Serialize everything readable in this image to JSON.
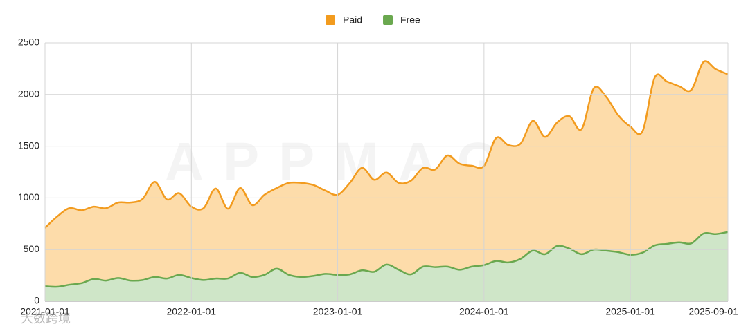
{
  "chart_data": {
    "type": "area",
    "watermark": "APPMAGIC",
    "source_watermark": "大数跨境",
    "x": [
      "2021-01-01",
      "2021-02-01",
      "2021-03-01",
      "2021-04-01",
      "2021-05-01",
      "2021-06-01",
      "2021-07-01",
      "2021-08-01",
      "2021-09-01",
      "2021-10-01",
      "2021-11-01",
      "2021-12-01",
      "2022-01-01",
      "2022-02-01",
      "2022-03-01",
      "2022-04-01",
      "2022-05-01",
      "2022-06-01",
      "2022-07-01",
      "2022-08-01",
      "2022-09-01",
      "2022-10-01",
      "2022-11-01",
      "2022-12-01",
      "2023-01-01",
      "2023-02-01",
      "2023-03-01",
      "2023-04-01",
      "2023-05-01",
      "2023-06-01",
      "2023-07-01",
      "2023-08-01",
      "2023-09-01",
      "2023-10-01",
      "2023-11-01",
      "2023-12-01",
      "2024-01-01",
      "2024-02-01",
      "2024-03-01",
      "2024-04-01",
      "2024-05-01",
      "2024-06-01",
      "2024-07-01",
      "2024-08-01",
      "2024-09-01",
      "2024-10-01",
      "2024-11-01",
      "2024-12-01",
      "2025-01-01",
      "2025-02-01",
      "2025-03-01",
      "2025-04-01",
      "2025-05-01",
      "2025-06-01",
      "2025-07-01",
      "2025-08-01",
      "2025-09-01"
    ],
    "series": [
      {
        "name": "Paid",
        "color": "#f29b1e",
        "fill": "#fddcaa",
        "values": [
          710,
          820,
          900,
          880,
          915,
          900,
          955,
          955,
          990,
          1155,
          985,
          1045,
          915,
          900,
          1090,
          895,
          1095,
          930,
          1030,
          1095,
          1145,
          1145,
          1125,
          1070,
          1030,
          1145,
          1290,
          1175,
          1245,
          1145,
          1165,
          1290,
          1275,
          1410,
          1330,
          1310,
          1310,
          1580,
          1510,
          1525,
          1745,
          1590,
          1730,
          1790,
          1665,
          2060,
          1980,
          1800,
          1690,
          1645,
          2165,
          2125,
          2080,
          2045,
          2315,
          2245,
          2195
        ]
      },
      {
        "name": "Free",
        "color": "#6aa84f",
        "fill": "#cfe6c8",
        "values": [
          145,
          140,
          160,
          175,
          215,
          200,
          225,
          200,
          205,
          235,
          220,
          255,
          225,
          205,
          220,
          220,
          275,
          235,
          255,
          315,
          255,
          235,
          245,
          265,
          255,
          260,
          300,
          285,
          355,
          305,
          260,
          335,
          330,
          335,
          305,
          335,
          350,
          390,
          375,
          410,
          490,
          455,
          535,
          510,
          455,
          500,
          490,
          475,
          450,
          470,
          540,
          555,
          570,
          560,
          655,
          650,
          670
        ]
      }
    ],
    "ylim": [
      0,
      2500
    ],
    "yticks": [
      0,
      500,
      1000,
      1500,
      2000,
      2500
    ],
    "xticks": [
      "2021-01-01",
      "2022-01-01",
      "2023-01-01",
      "2024-01-01",
      "2025-01-01",
      "2025-09-01"
    ],
    "grid": true,
    "legend": "top"
  }
}
